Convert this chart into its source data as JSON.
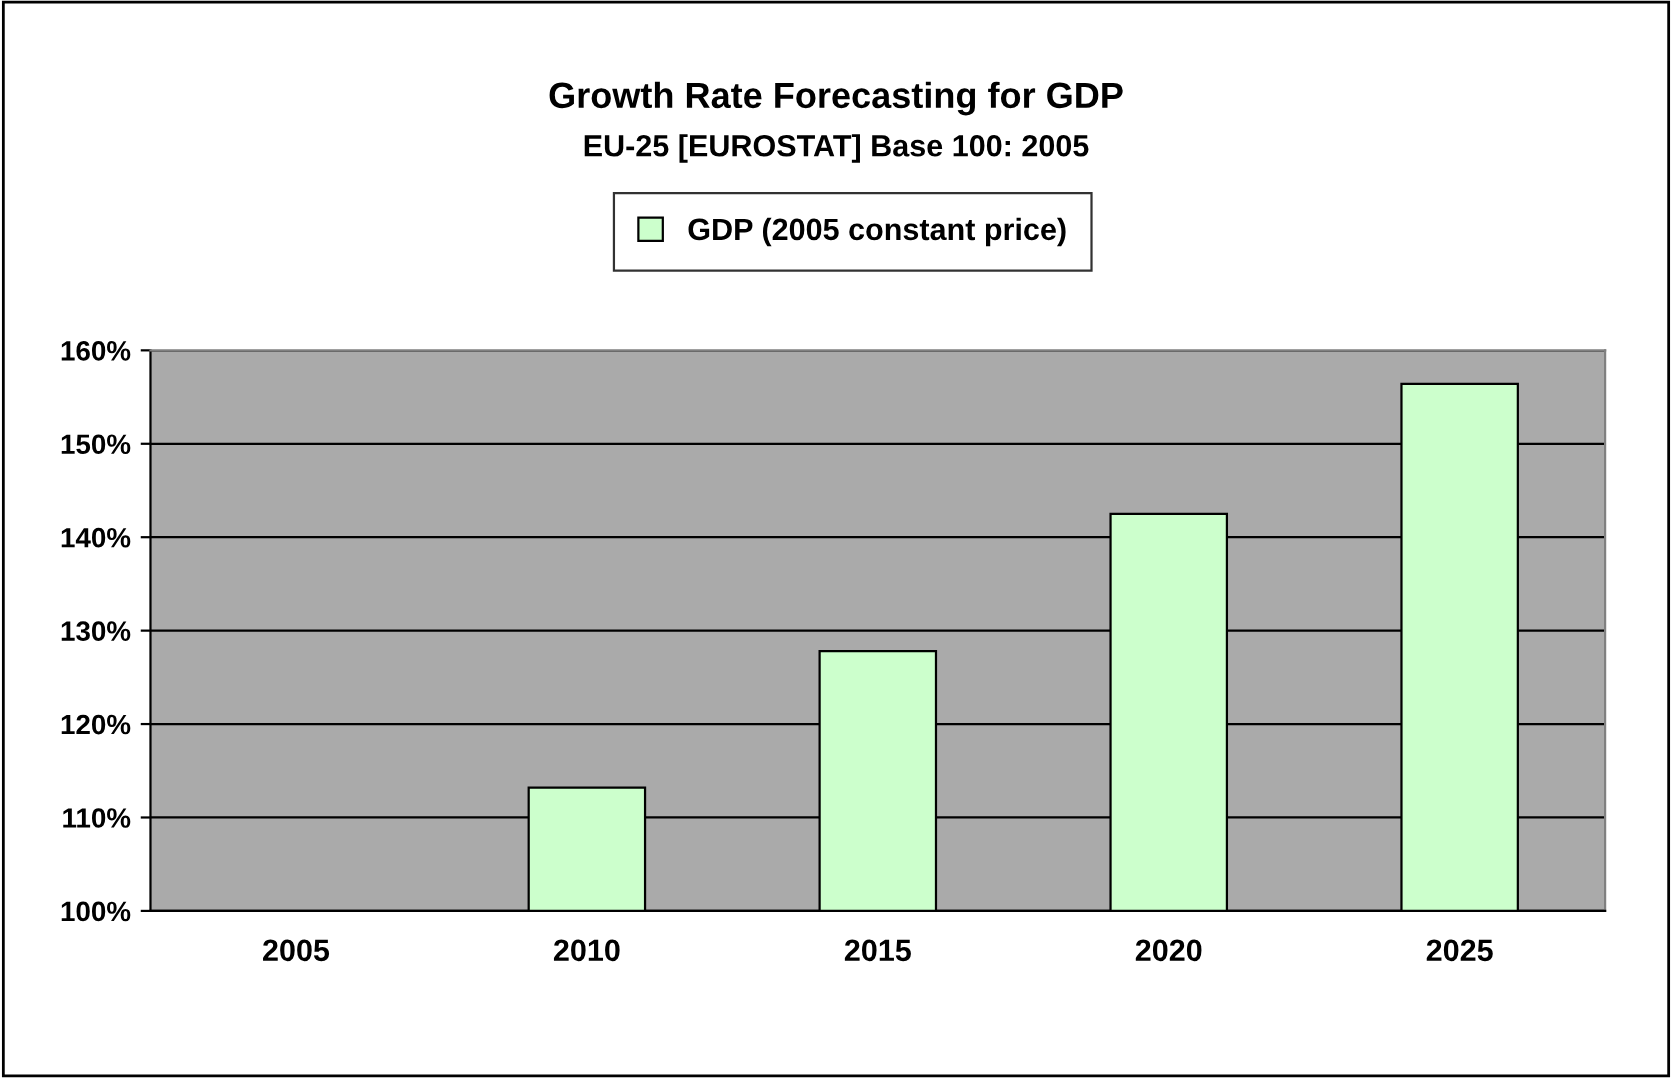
{
  "chart_data": {
    "type": "bar",
    "title": "Growth Rate Forecasting for GDP",
    "subtitle": "EU-25 [EUROSTAT] Base 100: 2005",
    "categories": [
      "2005",
      "2010",
      "2015",
      "2020",
      "2025"
    ],
    "series": [
      {
        "name": "GDP (2005 constant price)",
        "color": "#ccffcc",
        "values": [
          null,
          113.2,
          127.8,
          142.5,
          156.4
        ]
      }
    ],
    "ylim": [
      100,
      160
    ],
    "yticks": [
      {
        "value": 100,
        "label": "100%"
      },
      {
        "value": 110,
        "label": "110%"
      },
      {
        "value": 120,
        "label": "120%"
      },
      {
        "value": 130,
        "label": "130%"
      },
      {
        "value": 140,
        "label": "140%"
      },
      {
        "value": 150,
        "label": "150%"
      },
      {
        "value": 160,
        "label": "160%"
      }
    ],
    "grid": "y",
    "legend": "top"
  }
}
